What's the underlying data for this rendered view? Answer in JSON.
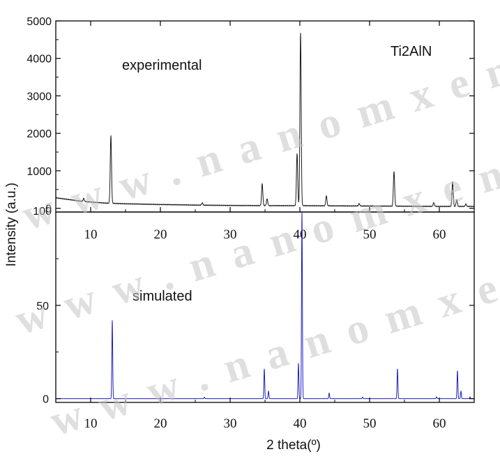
{
  "watermark": "w w w . n a n o m x e n e s . c o m",
  "colors": {
    "experimental": "#1a1a1a",
    "simulated": "#1f1fbf",
    "axis": "#000000"
  },
  "chart_data": [
    {
      "type": "line",
      "panel": "top",
      "annotation": "experimental",
      "label": "Ti2AlN",
      "ylabel": "Intensity (a.u.)",
      "xlim": [
        5,
        65
      ],
      "ylim": [
        -100,
        5000
      ],
      "xticks": [
        10,
        20,
        30,
        40,
        50,
        60
      ],
      "yticks": [
        0,
        1000,
        2000,
        3000,
        4000,
        5000
      ],
      "ytick_labels": [
        "0",
        "1000",
        "2000",
        "3000",
        "4000",
        "5000"
      ],
      "extra_ytick_label": "100",
      "baseline": [
        [
          5,
          280
        ],
        [
          7,
          230
        ],
        [
          9,
          180
        ],
        [
          12,
          140
        ],
        [
          15,
          120
        ],
        [
          20,
          100
        ],
        [
          25,
          85
        ],
        [
          30,
          75
        ],
        [
          35,
          70
        ],
        [
          40,
          70
        ],
        [
          45,
          65
        ],
        [
          50,
          60
        ],
        [
          55,
          55
        ],
        [
          60,
          50
        ],
        [
          65,
          50
        ]
      ],
      "peaks": [
        {
          "x": 9.0,
          "y": 80
        },
        {
          "x": 12.9,
          "y": 1800
        },
        {
          "x": 26.0,
          "y": 60
        },
        {
          "x": 34.6,
          "y": 580
        },
        {
          "x": 35.3,
          "y": 180
        },
        {
          "x": 39.6,
          "y": 1400
        },
        {
          "x": 40.1,
          "y": 4620
        },
        {
          "x": 43.8,
          "y": 260
        },
        {
          "x": 48.5,
          "y": 60
        },
        {
          "x": 53.5,
          "y": 930
        },
        {
          "x": 59.2,
          "y": 100
        },
        {
          "x": 61.9,
          "y": 650
        },
        {
          "x": 62.5,
          "y": 180
        },
        {
          "x": 63.8,
          "y": 60
        }
      ]
    },
    {
      "type": "line",
      "panel": "bottom",
      "annotation": "simulated",
      "xlabel": "2 theta(º)",
      "xlim": [
        5,
        65
      ],
      "ylim": [
        -2,
        100
      ],
      "xticks": [
        10,
        20,
        30,
        40,
        50,
        60
      ],
      "yticks": [
        0,
        50
      ],
      "peaks": [
        {
          "x": 13.1,
          "y": 42
        },
        {
          "x": 26.3,
          "y": 0.8
        },
        {
          "x": 34.9,
          "y": 16
        },
        {
          "x": 35.5,
          "y": 4
        },
        {
          "x": 39.8,
          "y": 19
        },
        {
          "x": 40.3,
          "y": 100
        },
        {
          "x": 44.2,
          "y": 3
        },
        {
          "x": 49.0,
          "y": 0.8
        },
        {
          "x": 54.0,
          "y": 16
        },
        {
          "x": 59.6,
          "y": 1
        },
        {
          "x": 62.6,
          "y": 15
        },
        {
          "x": 63.1,
          "y": 4
        },
        {
          "x": 64.4,
          "y": 1
        }
      ]
    }
  ]
}
